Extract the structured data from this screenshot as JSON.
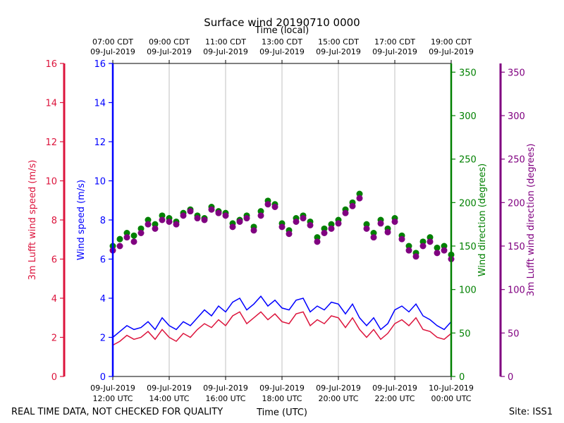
{
  "chart_data": {
    "type": "line",
    "title": "Surface wind 20190710 0000",
    "top_axis_label": "Time (local)",
    "bottom_axis_label": "Time (UTC)",
    "footer_left": "REAL TIME DATA, NOT CHECKED FOR QUALITY",
    "footer_right": "Site: ISS1",
    "x_range_hours_utc": [
      12,
      24
    ],
    "grid": "vertical",
    "bottom_ticks": [
      {
        "x": 12,
        "line1": "09-Jul-2019",
        "line2": "12:00 UTC"
      },
      {
        "x": 14,
        "line1": "09-Jul-2019",
        "line2": "14:00 UTC"
      },
      {
        "x": 16,
        "line1": "09-Jul-2019",
        "line2": "16:00 UTC"
      },
      {
        "x": 18,
        "line1": "09-Jul-2019",
        "line2": "18:00 UTC"
      },
      {
        "x": 20,
        "line1": "09-Jul-2019",
        "line2": "20:00 UTC"
      },
      {
        "x": 22,
        "line1": "09-Jul-2019",
        "line2": "22:00 UTC"
      },
      {
        "x": 24,
        "line1": "10-Jul-2019",
        "line2": "00:00 UTC"
      }
    ],
    "top_ticks": [
      {
        "x": 12,
        "line1": "07:00 CDT",
        "line2": "09-Jul-2019"
      },
      {
        "x": 14,
        "line1": "09:00 CDT",
        "line2": "09-Jul-2019"
      },
      {
        "x": 16,
        "line1": "11:00 CDT",
        "line2": "09-Jul-2019"
      },
      {
        "x": 18,
        "line1": "13:00 CDT",
        "line2": "09-Jul-2019"
      },
      {
        "x": 20,
        "line1": "15:00 CDT",
        "line2": "09-Jul-2019"
      },
      {
        "x": 22,
        "line1": "17:00 CDT",
        "line2": "09-Jul-2019"
      },
      {
        "x": 24,
        "line1": "19:00 CDT",
        "line2": "09-Jul-2019"
      }
    ],
    "axes": [
      {
        "id": "luft_speed",
        "label": "3m Lufft wind speed (m/s)",
        "color": "#dc143c",
        "range": [
          0,
          16
        ],
        "ticks": [
          0,
          2,
          4,
          6,
          8,
          10,
          12,
          14,
          16
        ]
      },
      {
        "id": "speed",
        "label": "Wind speed (m/s)",
        "color": "#0000ff",
        "range": [
          0,
          16
        ],
        "ticks": [
          0,
          2,
          4,
          6,
          8,
          10,
          12,
          14,
          16
        ]
      },
      {
        "id": "direction",
        "label": "Wind direction (degrees)",
        "color": "#008000",
        "range": [
          0,
          360
        ],
        "ticks": [
          0,
          50,
          100,
          150,
          200,
          250,
          300,
          350
        ]
      },
      {
        "id": "luft_direction",
        "label": "3m Lufft wind direction (degrees)",
        "color": "#800080",
        "range": [
          0,
          360
        ],
        "ticks": [
          0,
          50,
          100,
          150,
          200,
          250,
          300,
          350
        ]
      }
    ],
    "series": [
      {
        "name": "Wind speed (m/s)",
        "axis": "speed",
        "style": "line",
        "color": "#0000ff",
        "x": [
          12.0,
          12.25,
          12.5,
          12.75,
          13.0,
          13.25,
          13.5,
          13.75,
          14.0,
          14.25,
          14.5,
          14.75,
          15.0,
          15.25,
          15.5,
          15.75,
          16.0,
          16.25,
          16.5,
          16.75,
          17.0,
          17.25,
          17.5,
          17.75,
          18.0,
          18.25,
          18.5,
          18.75,
          19.0,
          19.25,
          19.5,
          19.75,
          20.0,
          20.25,
          20.5,
          20.75,
          21.0,
          21.25,
          21.5,
          21.75,
          22.0,
          22.25,
          22.5,
          22.75,
          23.0,
          23.25,
          23.5,
          23.75,
          24.0
        ],
        "y": [
          2.0,
          2.3,
          2.6,
          2.4,
          2.5,
          2.8,
          2.4,
          3.0,
          2.6,
          2.4,
          2.8,
          2.6,
          3.0,
          3.4,
          3.1,
          3.6,
          3.3,
          3.8,
          4.0,
          3.4,
          3.7,
          4.1,
          3.6,
          3.9,
          3.5,
          3.4,
          3.9,
          4.0,
          3.3,
          3.6,
          3.4,
          3.8,
          3.7,
          3.2,
          3.7,
          3.0,
          2.6,
          3.0,
          2.4,
          2.7,
          3.4,
          3.6,
          3.3,
          3.7,
          3.1,
          2.9,
          2.6,
          2.4,
          2.8
        ]
      },
      {
        "name": "3m Lufft wind speed (m/s)",
        "axis": "luft_speed",
        "style": "line",
        "color": "#dc143c",
        "x": [
          12.0,
          12.25,
          12.5,
          12.75,
          13.0,
          13.25,
          13.5,
          13.75,
          14.0,
          14.25,
          14.5,
          14.75,
          15.0,
          15.25,
          15.5,
          15.75,
          16.0,
          16.25,
          16.5,
          16.75,
          17.0,
          17.25,
          17.5,
          17.75,
          18.0,
          18.25,
          18.5,
          18.75,
          19.0,
          19.25,
          19.5,
          19.75,
          20.0,
          20.25,
          20.5,
          20.75,
          21.0,
          21.25,
          21.5,
          21.75,
          22.0,
          22.25,
          22.5,
          22.75,
          23.0,
          23.25,
          23.5,
          23.75,
          24.0
        ],
        "y": [
          1.6,
          1.8,
          2.1,
          1.9,
          2.0,
          2.3,
          1.9,
          2.4,
          2.0,
          1.8,
          2.2,
          2.0,
          2.4,
          2.7,
          2.5,
          2.9,
          2.6,
          3.1,
          3.3,
          2.7,
          3.0,
          3.3,
          2.9,
          3.2,
          2.8,
          2.7,
          3.2,
          3.3,
          2.6,
          2.9,
          2.7,
          3.1,
          3.0,
          2.5,
          3.0,
          2.4,
          2.0,
          2.4,
          1.9,
          2.2,
          2.7,
          2.9,
          2.6,
          3.0,
          2.4,
          2.3,
          2.0,
          1.9,
          2.2
        ]
      },
      {
        "name": "Wind direction (degrees)",
        "axis": "direction",
        "style": "scatter",
        "color": "#008000",
        "x": [
          12.0,
          12.25,
          12.5,
          12.75,
          13.0,
          13.25,
          13.5,
          13.75,
          14.0,
          14.25,
          14.5,
          14.75,
          15.0,
          15.25,
          15.5,
          15.75,
          16.0,
          16.25,
          16.5,
          16.75,
          17.0,
          17.25,
          17.5,
          17.75,
          18.0,
          18.25,
          18.5,
          18.75,
          19.0,
          19.25,
          19.5,
          19.75,
          20.0,
          20.25,
          20.5,
          20.75,
          21.0,
          21.25,
          21.5,
          21.75,
          22.0,
          22.25,
          22.5,
          22.75,
          23.0,
          23.25,
          23.5,
          23.75,
          24.0
        ],
        "y": [
          150,
          158,
          165,
          162,
          170,
          180,
          175,
          185,
          182,
          178,
          188,
          192,
          185,
          182,
          195,
          190,
          188,
          176,
          180,
          185,
          172,
          190,
          202,
          198,
          176,
          168,
          182,
          185,
          178,
          160,
          170,
          175,
          180,
          192,
          200,
          210,
          175,
          165,
          180,
          170,
          182,
          162,
          150,
          142,
          155,
          160,
          148,
          150,
          140
        ]
      },
      {
        "name": "3m Lufft wind direction (degrees)",
        "axis": "luft_direction",
        "style": "scatter",
        "color": "#800080",
        "x": [
          12.0,
          12.25,
          12.5,
          12.75,
          13.0,
          13.25,
          13.5,
          13.75,
          14.0,
          14.25,
          14.5,
          14.75,
          15.0,
          15.25,
          15.5,
          15.75,
          16.0,
          16.25,
          16.5,
          16.75,
          17.0,
          17.25,
          17.5,
          17.75,
          18.0,
          18.25,
          18.5,
          18.75,
          19.0,
          19.25,
          19.5,
          19.75,
          20.0,
          20.25,
          20.5,
          20.75,
          21.0,
          21.25,
          21.5,
          21.75,
          22.0,
          22.25,
          22.5,
          22.75,
          23.0,
          23.25,
          23.5,
          23.75,
          24.0
        ],
        "y": [
          145,
          150,
          160,
          155,
          165,
          175,
          170,
          180,
          178,
          175,
          185,
          190,
          182,
          180,
          192,
          188,
          185,
          172,
          178,
          182,
          168,
          185,
          198,
          195,
          172,
          164,
          178,
          182,
          174,
          155,
          165,
          170,
          176,
          188,
          196,
          205,
          170,
          160,
          176,
          166,
          178,
          158,
          145,
          138,
          150,
          155,
          142,
          145,
          135
        ]
      }
    ]
  }
}
